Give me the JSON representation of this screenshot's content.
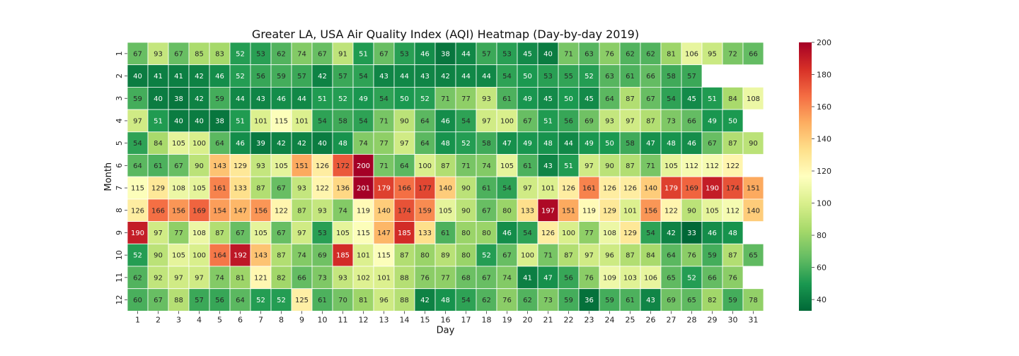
{
  "chart_data": {
    "type": "heatmap",
    "title": "Greater LA, USA Air Quality Index (AQI) Heatmap (Day-by-day 2019)",
    "xlabel": "Day",
    "ylabel": "Month",
    "x_categories": [
      "1",
      "2",
      "3",
      "4",
      "5",
      "6",
      "7",
      "8",
      "9",
      "10",
      "11",
      "12",
      "13",
      "14",
      "15",
      "16",
      "17",
      "18",
      "19",
      "20",
      "21",
      "22",
      "23",
      "24",
      "25",
      "26",
      "27",
      "28",
      "29",
      "30",
      "31"
    ],
    "y_categories": [
      "1",
      "2",
      "3",
      "4",
      "5",
      "6",
      "7",
      "8",
      "9",
      "10",
      "11",
      "12"
    ],
    "values": [
      [
        67,
        93,
        67,
        85,
        83,
        52,
        53,
        62,
        74,
        67,
        91,
        51,
        67,
        53,
        46,
        38,
        44,
        57,
        53,
        45,
        40,
        71,
        63,
        76,
        62,
        62,
        81,
        106,
        95,
        72,
        66
      ],
      [
        40,
        41,
        41,
        42,
        46,
        52,
        56,
        59,
        57,
        42,
        57,
        54,
        43,
        44,
        43,
        42,
        44,
        44,
        54,
        50,
        53,
        55,
        52,
        63,
        61,
        66,
        58,
        57,
        null,
        null,
        null
      ],
      [
        59,
        40,
        38,
        42,
        59,
        44,
        43,
        46,
        44,
        51,
        52,
        49,
        54,
        50,
        52,
        71,
        77,
        93,
        61,
        49,
        45,
        50,
        45,
        64,
        87,
        67,
        54,
        45,
        51,
        84,
        108
      ],
      [
        97,
        51,
        40,
        40,
        38,
        51,
        101,
        115,
        101,
        54,
        58,
        54,
        71,
        90,
        64,
        46,
        54,
        97,
        100,
        67,
        51,
        56,
        69,
        93,
        97,
        87,
        73,
        66,
        49,
        50,
        null
      ],
      [
        54,
        84,
        105,
        100,
        64,
        46,
        39,
        42,
        42,
        40,
        48,
        74,
        77,
        97,
        64,
        48,
        52,
        58,
        47,
        49,
        48,
        44,
        49,
        50,
        58,
        47,
        48,
        46,
        67,
        87,
        90
      ],
      [
        64,
        61,
        67,
        90,
        143,
        129,
        93,
        105,
        151,
        126,
        172,
        200,
        71,
        64,
        100,
        87,
        71,
        74,
        105,
        61,
        43,
        51,
        97,
        90,
        87,
        71,
        105,
        112,
        112,
        122,
        null
      ],
      [
        115,
        129,
        108,
        105,
        161,
        133,
        87,
        67,
        93,
        122,
        136,
        201,
        179,
        166,
        177,
        140,
        90,
        61,
        54,
        97,
        101,
        126,
        161,
        126,
        126,
        140,
        179,
        169,
        190,
        174,
        151
      ],
      [
        126,
        166,
        156,
        169,
        154,
        147,
        156,
        122,
        87,
        93,
        74,
        119,
        140,
        174,
        159,
        105,
        90,
        67,
        80,
        133,
        197,
        151,
        119,
        129,
        101,
        156,
        122,
        90,
        105,
        112,
        140
      ],
      [
        190,
        97,
        77,
        108,
        87,
        67,
        105,
        67,
        97,
        53,
        105,
        115,
        147,
        185,
        133,
        61,
        80,
        80,
        46,
        54,
        126,
        100,
        77,
        108,
        129,
        54,
        42,
        33,
        46,
        48,
        null
      ],
      [
        52,
        90,
        105,
        100,
        164,
        192,
        143,
        87,
        74,
        69,
        185,
        101,
        115,
        87,
        80,
        89,
        80,
        52,
        67,
        100,
        71,
        87,
        97,
        96,
        87,
        84,
        64,
        76,
        59,
        87,
        65
      ],
      [
        62,
        92,
        97,
        97,
        74,
        81,
        121,
        82,
        66,
        73,
        93,
        102,
        101,
        88,
        76,
        77,
        68,
        67,
        74,
        41,
        47,
        56,
        76,
        109,
        103,
        106,
        65,
        52,
        66,
        76,
        null
      ],
      [
        60,
        67,
        88,
        57,
        56,
        64,
        52,
        52,
        125,
        61,
        70,
        81,
        96,
        88,
        42,
        48,
        54,
        62,
        76,
        62,
        73,
        59,
        36,
        59,
        61,
        43,
        69,
        65,
        82,
        59,
        78
      ]
    ],
    "colorbar": {
      "vmin": 33,
      "vmax": 200,
      "ticks": [
        40,
        60,
        80,
        100,
        120,
        140,
        160,
        180,
        200
      ],
      "colormap": "RdYlGn_r",
      "stops": [
        "#006837",
        "#1a9850",
        "#66bd63",
        "#a6d96a",
        "#d9ef8b",
        "#ffffbf",
        "#fee08b",
        "#fdae61",
        "#f46d43",
        "#d73027",
        "#a50026"
      ]
    },
    "cell_border_color": "#ffffff",
    "annotations": true
  }
}
